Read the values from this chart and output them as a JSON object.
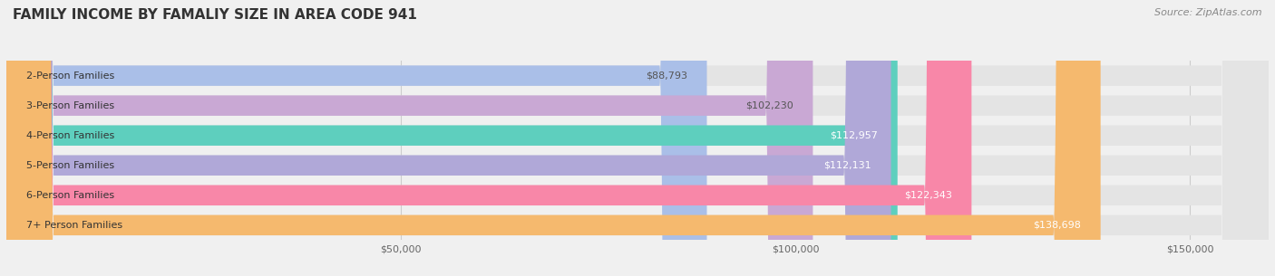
{
  "title": "FAMILY INCOME BY FAMALIY SIZE IN AREA CODE 941",
  "source": "Source: ZipAtlas.com",
  "categories": [
    "2-Person Families",
    "3-Person Families",
    "4-Person Families",
    "5-Person Families",
    "6-Person Families",
    "7+ Person Families"
  ],
  "values": [
    88793,
    102230,
    112957,
    112131,
    122343,
    138698
  ],
  "labels": [
    "$88,793",
    "$102,230",
    "$112,957",
    "$112,131",
    "$122,343",
    "$138,698"
  ],
  "bar_colors": [
    "#aabfe8",
    "#c9a8d4",
    "#5ecfbe",
    "#b0a8d8",
    "#f887a8",
    "#f5b96e"
  ],
  "label_colors": [
    "#555555",
    "#555555",
    "#ffffff",
    "#ffffff",
    "#ffffff",
    "#ffffff"
  ],
  "xlim": [
    0,
    160000
  ],
  "xticks": [
    0,
    50000,
    100000,
    150000
  ],
  "xticklabels": [
    "",
    "$50,000",
    "$100,000",
    "$150,000"
  ],
  "background_color": "#f0f0f0",
  "bar_background": "#e4e4e4",
  "title_fontsize": 11,
  "source_fontsize": 8,
  "label_fontsize": 8,
  "category_fontsize": 8,
  "bar_height": 0.68,
  "fig_width": 14.06,
  "fig_height": 3.05
}
